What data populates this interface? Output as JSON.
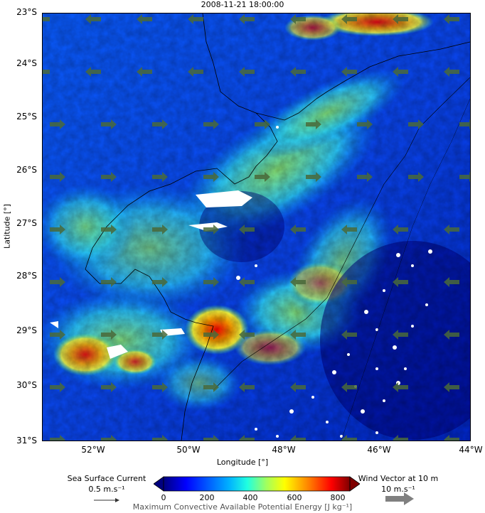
{
  "title": "2008-11-21 18:00:00",
  "axes": {
    "xlabel": "Longitude [°]",
    "ylabel": "Latitude [°]",
    "x_ticks": [
      "52°W",
      "50°W",
      "48°W",
      "46°W",
      "44°W"
    ],
    "y_ticks": [
      "23°S",
      "24°S",
      "25°S",
      "26°S",
      "27°S",
      "28°S",
      "29°S",
      "30°S",
      "31°S"
    ],
    "lon_range": [
      -53,
      -44
    ],
    "lat_range": [
      -31,
      -23
    ]
  },
  "legend_current": {
    "title": "Sea Surface Current",
    "value": "0.5 m.s⁻¹"
  },
  "legend_wind": {
    "title": "Wind Vector at 10 m",
    "value": "10 m.s⁻¹"
  },
  "colorbar": {
    "title": "Maximum Convective Available Potential Energy [J kg⁻¹]",
    "ticks": [
      "0",
      "200",
      "400",
      "600",
      "800"
    ],
    "range": [
      0,
      800
    ],
    "colormap": "jet",
    "extend": "both",
    "colors": [
      "#00007f",
      "#0000ff",
      "#0080ff",
      "#00ffff",
      "#80ff80",
      "#ffff00",
      "#ff8000",
      "#ff0000",
      "#7f0000"
    ]
  },
  "colors": {
    "wind_arrow": "#4a6a3a",
    "current_arrow": "#333333",
    "coastline": "#000000",
    "cloud_mask": "#ffffff"
  }
}
